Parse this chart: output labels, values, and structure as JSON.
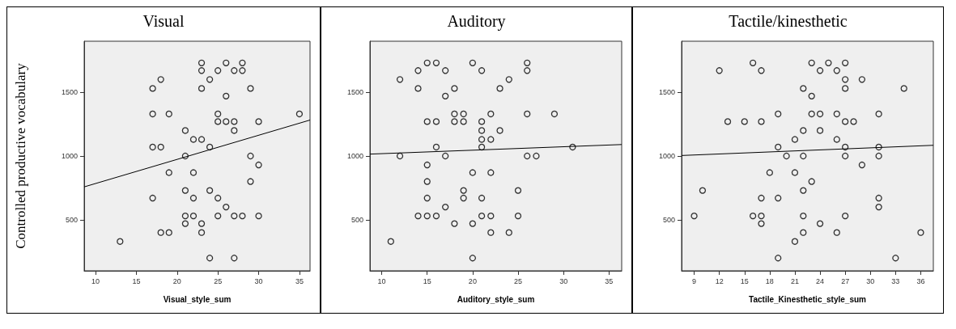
{
  "chart_data": [
    {
      "type": "scatter",
      "title": "Visual",
      "xlabel": "Visual_style_sum",
      "ylabel": "Controlled productive vocabulary",
      "xlim": [
        8.6,
        36.3
      ],
      "ylim": [
        100,
        1900
      ],
      "xticks": [
        10,
        15,
        20,
        25,
        30,
        35
      ],
      "yticks": [
        500,
        1000,
        1500
      ],
      "grid": false,
      "series": [
        {
          "type": "scatter",
          "marker": "circle",
          "color": "#000000",
          "x": [
            23,
            26,
            28,
            23,
            25,
            27,
            28,
            18,
            24,
            17,
            23,
            29,
            26,
            17,
            19,
            25,
            35,
            25,
            26,
            27,
            30,
            21,
            27,
            22,
            23,
            17,
            18,
            24,
            21,
            29,
            30,
            19,
            22,
            29,
            21,
            24,
            17,
            22,
            25,
            26,
            21,
            22,
            25,
            27,
            28,
            30,
            21,
            23,
            18,
            19,
            23,
            13,
            24,
            27
          ],
          "values": [
            1730,
            1730,
            1730,
            1670,
            1670,
            1670,
            1670,
            1600,
            1600,
            1530,
            1530,
            1530,
            1470,
            1330,
            1330,
            1330,
            1330,
            1270,
            1270,
            1270,
            1270,
            1200,
            1200,
            1130,
            1130,
            1070,
            1070,
            1070,
            1000,
            1000,
            930,
            870,
            870,
            800,
            730,
            730,
            670,
            670,
            670,
            600,
            530,
            530,
            530,
            530,
            530,
            530,
            470,
            470,
            400,
            400,
            400,
            330,
            200,
            200
          ]
        },
        {
          "type": "line",
          "marker": "none",
          "color": "#000000",
          "x": [
            8.6,
            36.3
          ],
          "values": [
            758,
            1282
          ]
        }
      ]
    },
    {
      "type": "scatter",
      "title": "Auditory",
      "xlabel": "Auditory_style_sum",
      "xlim": [
        8.7,
        36.4
      ],
      "ylim": [
        100,
        1900
      ],
      "xticks": [
        10,
        15,
        20,
        25,
        30,
        35
      ],
      "yticks": [
        500,
        1000,
        1500
      ],
      "grid": false,
      "series": [
        {
          "type": "scatter",
          "marker": "circle",
          "color": "#000000",
          "x": [
            15,
            16,
            20,
            26,
            14,
            17,
            21,
            26,
            12,
            24,
            14,
            18,
            23,
            17,
            18,
            19,
            22,
            26,
            29,
            15,
            16,
            18,
            19,
            21,
            21,
            23,
            21,
            22,
            16,
            21,
            31,
            12,
            17,
            26,
            27,
            15,
            20,
            22,
            15,
            19,
            25,
            15,
            19,
            21,
            17,
            14,
            15,
            16,
            21,
            22,
            25,
            18,
            20,
            22,
            24,
            11,
            20
          ],
          "values": [
            1730,
            1730,
            1730,
            1730,
            1670,
            1670,
            1670,
            1670,
            1600,
            1600,
            1530,
            1530,
            1530,
            1470,
            1330,
            1330,
            1330,
            1330,
            1330,
            1270,
            1270,
            1270,
            1270,
            1270,
            1200,
            1200,
            1130,
            1130,
            1070,
            1070,
            1070,
            1000,
            1000,
            1000,
            1000,
            930,
            870,
            870,
            800,
            730,
            730,
            670,
            670,
            670,
            600,
            530,
            530,
            530,
            530,
            530,
            530,
            470,
            470,
            400,
            400,
            330,
            200
          ]
        },
        {
          "type": "line",
          "marker": "none",
          "color": "#000000",
          "x": [
            8.7,
            36.4
          ],
          "values": [
            1015,
            1090
          ]
        }
      ]
    },
    {
      "type": "scatter",
      "title": "Tactile/kinesthetic",
      "xlabel": "Tactile_Kinesthetic_style_sum",
      "xlim": [
        7.5,
        37.5
      ],
      "ylim": [
        100,
        1900
      ],
      "xticks": [
        9,
        12,
        15,
        18,
        21,
        24,
        27,
        30,
        33,
        36
      ],
      "yticks": [
        500,
        1000,
        1500
      ],
      "grid": false,
      "series": [
        {
          "type": "scatter",
          "marker": "circle",
          "color": "#000000",
          "x": [
            16,
            23,
            25,
            27,
            12,
            17,
            24,
            26,
            27,
            29,
            22,
            27,
            34,
            23,
            19,
            23,
            24,
            26,
            31,
            13,
            15,
            17,
            27,
            28,
            22,
            24,
            21,
            26,
            19,
            27,
            31,
            20,
            22,
            27,
            31,
            29,
            18,
            21,
            23,
            10,
            22,
            17,
            19,
            31,
            31,
            9,
            16,
            17,
            22,
            27,
            17,
            24,
            22,
            26,
            36,
            21,
            19,
            33
          ],
          "values": [
            1730,
            1730,
            1730,
            1730,
            1670,
            1670,
            1670,
            1670,
            1600,
            1600,
            1530,
            1530,
            1530,
            1470,
            1330,
            1330,
            1330,
            1330,
            1330,
            1270,
            1270,
            1270,
            1270,
            1270,
            1200,
            1200,
            1130,
            1130,
            1070,
            1070,
            1070,
            1000,
            1000,
            1000,
            1000,
            930,
            870,
            870,
            800,
            730,
            730,
            670,
            670,
            670,
            600,
            530,
            530,
            530,
            530,
            530,
            470,
            470,
            400,
            400,
            400,
            330,
            200,
            200
          ]
        },
        {
          "type": "line",
          "marker": "none",
          "color": "#000000",
          "x": [
            7.5,
            37.5
          ],
          "values": [
            1004,
            1084
          ]
        }
      ]
    }
  ]
}
